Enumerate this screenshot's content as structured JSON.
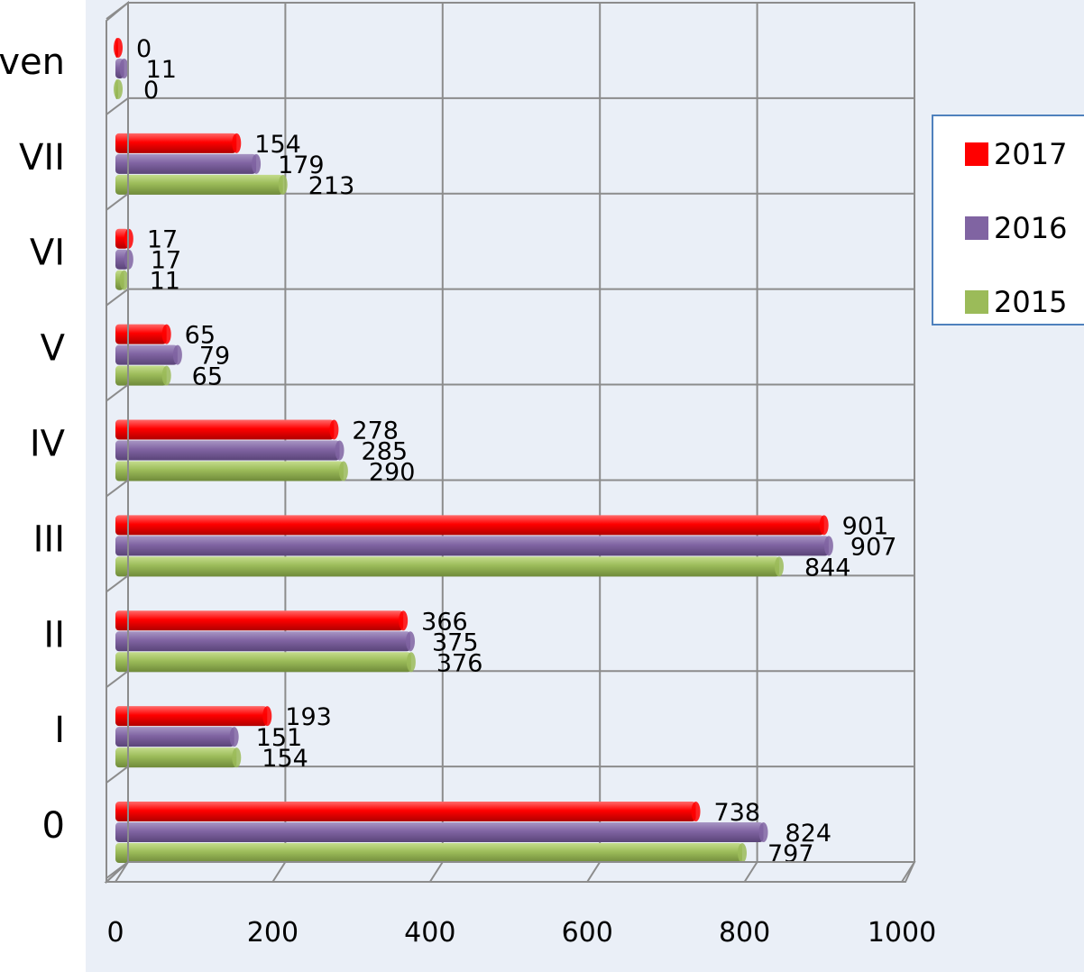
{
  "chart_data": {
    "type": "bar",
    "orientation": "horizontal",
    "categories": [
      "0",
      "I",
      "II",
      "III",
      "IV",
      "V",
      "VI",
      "VII",
      "ven"
    ],
    "series": [
      {
        "name": "2017",
        "color": "#ff0000",
        "values": [
          738,
          193,
          366,
          901,
          278,
          65,
          17,
          154,
          0
        ]
      },
      {
        "name": "2016",
        "color": "#8064a2",
        "values": [
          824,
          151,
          375,
          907,
          285,
          79,
          17,
          179,
          11
        ]
      },
      {
        "name": "2015",
        "color": "#9bbb59",
        "values": [
          797,
          154,
          376,
          844,
          290,
          65,
          11,
          213,
          0
        ]
      }
    ],
    "xlim": [
      0,
      1000
    ],
    "xticks": [
      "0",
      "200",
      "400",
      "600",
      "800",
      "1000"
    ],
    "grid": true,
    "legend_position": "right",
    "title": "",
    "xlabel": "",
    "ylabel": ""
  }
}
